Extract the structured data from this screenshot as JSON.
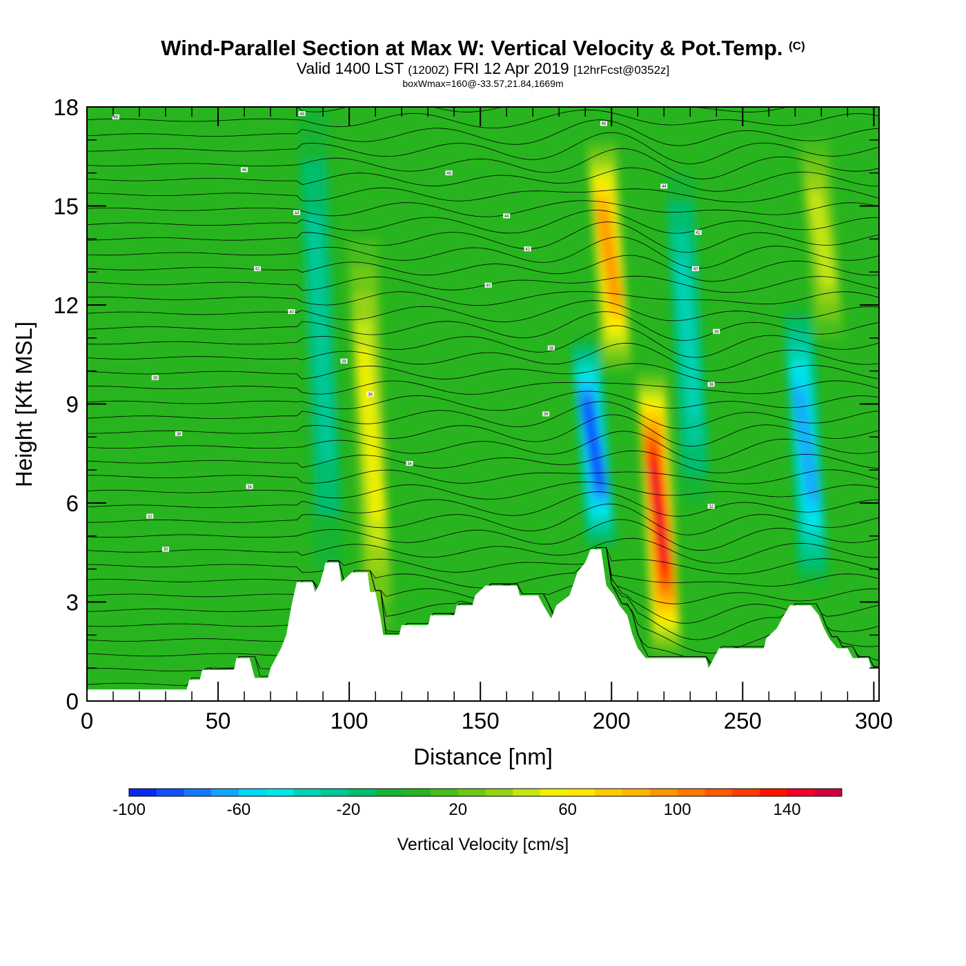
{
  "header": {
    "title": "Wind-Parallel Section at Max W: Vertical Velocity & Pot.Temp.",
    "copyright": "(C)",
    "valid_prefix": "Valid 1400 LST",
    "valid_utc": "(1200Z)",
    "valid_date": "FRI 12 Apr 2019",
    "forecast": "[12hrFcst@0352z]",
    "box_info": "boxWmax=160@-33.57,21.84,1669m"
  },
  "chart_data": {
    "type": "heatmap",
    "title": "Wind-Parallel Section at Max W: Vertical Velocity & Pot.Temp.",
    "xlabel": "Distance [nm]",
    "ylabel": "Height [Kft MSL]",
    "xlim": [
      0,
      302
    ],
    "ylim": [
      0,
      18
    ],
    "x_ticks": [
      0,
      50,
      100,
      150,
      200,
      250,
      300
    ],
    "y_ticks": [
      0,
      3,
      6,
      9,
      12,
      15,
      18
    ],
    "colorbar": {
      "label": "Vertical Velocity [cm/s]",
      "min": -100,
      "max": 160,
      "step": 10,
      "tick_values": [
        -100,
        -60,
        -20,
        20,
        60,
        100,
        140
      ],
      "tick_labels": [
        "-100",
        "-60",
        "-20",
        "20",
        "60",
        "100",
        "140"
      ],
      "colors": [
        "#0a28f5",
        "#0f50ff",
        "#1478ff",
        "#14a5ff",
        "#00d7f5",
        "#00e6e6",
        "#00d2b4",
        "#00c896",
        "#00be6e",
        "#14b432",
        "#28b41e",
        "#46be1e",
        "#6ec814",
        "#96d214",
        "#c3e614",
        "#f0f000",
        "#ffe600",
        "#ffc800",
        "#ffb400",
        "#ff9600",
        "#ff7800",
        "#ff5a00",
        "#ff3c00",
        "#ff1400",
        "#f00028",
        "#d2003c"
      ]
    },
    "vertical_velocity_features": [
      {
        "x": 92,
        "y_base": 4.0,
        "y_top": 18,
        "peak": -30
      },
      {
        "x": 111,
        "y_base": 2.2,
        "y_top": 14,
        "peak": 50
      },
      {
        "x": 196,
        "y_base": 4.6,
        "y_top": 11,
        "peak": -90
      },
      {
        "x": 202,
        "y_base": 10,
        "y_top": 17,
        "peak": 90
      },
      {
        "x": 221,
        "y_base": 1.4,
        "y_top": 10,
        "peak": 140
      },
      {
        "x": 232,
        "y_base": 6,
        "y_top": 16,
        "peak": -40
      },
      {
        "x": 277,
        "y_base": 3.5,
        "y_top": 12,
        "peak": -70
      },
      {
        "x": 283,
        "y_base": 11,
        "y_top": 17,
        "peak": 40
      }
    ],
    "terrain": [
      [
        0,
        0.35
      ],
      [
        38,
        0.35
      ],
      [
        39,
        0.65
      ],
      [
        43,
        0.65
      ],
      [
        44,
        0.95
      ],
      [
        56,
        0.95
      ],
      [
        57,
        1.3
      ],
      [
        62,
        1.3
      ],
      [
        64,
        0.7
      ],
      [
        69,
        0.7
      ],
      [
        70,
        1.0
      ],
      [
        72,
        1.3
      ],
      [
        74,
        1.6
      ],
      [
        76,
        2.0
      ],
      [
        78,
        2.9
      ],
      [
        80,
        3.6
      ],
      [
        86,
        3.6
      ],
      [
        87,
        3.3
      ],
      [
        89,
        3.6
      ],
      [
        91,
        4.2
      ],
      [
        96,
        4.2
      ],
      [
        97,
        3.6
      ],
      [
        101,
        3.9
      ],
      [
        107,
        3.9
      ],
      [
        108,
        3.3
      ],
      [
        110,
        3.3
      ],
      [
        112,
        2.5
      ],
      [
        113,
        2.0
      ],
      [
        119,
        2.0
      ],
      [
        120,
        2.3
      ],
      [
        130,
        2.3
      ],
      [
        131,
        2.6
      ],
      [
        140,
        2.6
      ],
      [
        141,
        2.9
      ],
      [
        147,
        2.9
      ],
      [
        148,
        3.2
      ],
      [
        152,
        3.5
      ],
      [
        164,
        3.5
      ],
      [
        165,
        3.2
      ],
      [
        172,
        3.2
      ],
      [
        174,
        2.9
      ],
      [
        177,
        2.5
      ],
      [
        179,
        2.9
      ],
      [
        184,
        3.2
      ],
      [
        187,
        3.9
      ],
      [
        190,
        4.2
      ],
      [
        192,
        4.6
      ],
      [
        196,
        4.6
      ],
      [
        198,
        3.5
      ],
      [
        201,
        3.2
      ],
      [
        203,
        2.9
      ],
      [
        206,
        2.6
      ],
      [
        208,
        2.0
      ],
      [
        210,
        1.6
      ],
      [
        213,
        1.3
      ],
      [
        236,
        1.3
      ],
      [
        237,
        1.0
      ],
      [
        239,
        1.3
      ],
      [
        241,
        1.6
      ],
      [
        258,
        1.6
      ],
      [
        259,
        1.9
      ],
      [
        263,
        2.2
      ],
      [
        265,
        2.5
      ],
      [
        268,
        2.9
      ],
      [
        276,
        2.9
      ],
      [
        279,
        2.6
      ],
      [
        281,
        2.2
      ],
      [
        283,
        1.9
      ],
      [
        286,
        1.6
      ],
      [
        290,
        1.6
      ],
      [
        292,
        1.3
      ],
      [
        298,
        1.3
      ],
      [
        299,
        1.0
      ],
      [
        302,
        1.0
      ]
    ],
    "isentrope_labels": [
      {
        "x": 11,
        "y": 17.7,
        "text": "48"
      },
      {
        "x": 82,
        "y": 17.8,
        "text": "48"
      },
      {
        "x": 60,
        "y": 16.1,
        "text": "46"
      },
      {
        "x": 138,
        "y": 16.0,
        "text": "46"
      },
      {
        "x": 80,
        "y": 14.8,
        "text": "44"
      },
      {
        "x": 160,
        "y": 14.7,
        "text": "44"
      },
      {
        "x": 197,
        "y": 17.5,
        "text": "48"
      },
      {
        "x": 220,
        "y": 15.6,
        "text": "44"
      },
      {
        "x": 233,
        "y": 14.2,
        "text": "42"
      },
      {
        "x": 168,
        "y": 13.7,
        "text": "42"
      },
      {
        "x": 65,
        "y": 13.1,
        "text": "42"
      },
      {
        "x": 153,
        "y": 12.6,
        "text": "40"
      },
      {
        "x": 232,
        "y": 13.1,
        "text": "40"
      },
      {
        "x": 78,
        "y": 11.8,
        "text": "40"
      },
      {
        "x": 240,
        "y": 11.2,
        "text": "38"
      },
      {
        "x": 177,
        "y": 10.7,
        "text": "38"
      },
      {
        "x": 98,
        "y": 10.3,
        "text": "38"
      },
      {
        "x": 26,
        "y": 9.8,
        "text": "38"
      },
      {
        "x": 238,
        "y": 9.6,
        "text": "36"
      },
      {
        "x": 108,
        "y": 9.3,
        "text": "36"
      },
      {
        "x": 175,
        "y": 8.7,
        "text": "36"
      },
      {
        "x": 35,
        "y": 8.1,
        "text": "38"
      },
      {
        "x": 123,
        "y": 7.2,
        "text": "34"
      },
      {
        "x": 62,
        "y": 6.5,
        "text": "34"
      },
      {
        "x": 238,
        "y": 5.9,
        "text": "32"
      },
      {
        "x": 24,
        "y": 5.6,
        "text": "32"
      },
      {
        "x": 30,
        "y": 4.6,
        "text": "30"
      }
    ]
  }
}
